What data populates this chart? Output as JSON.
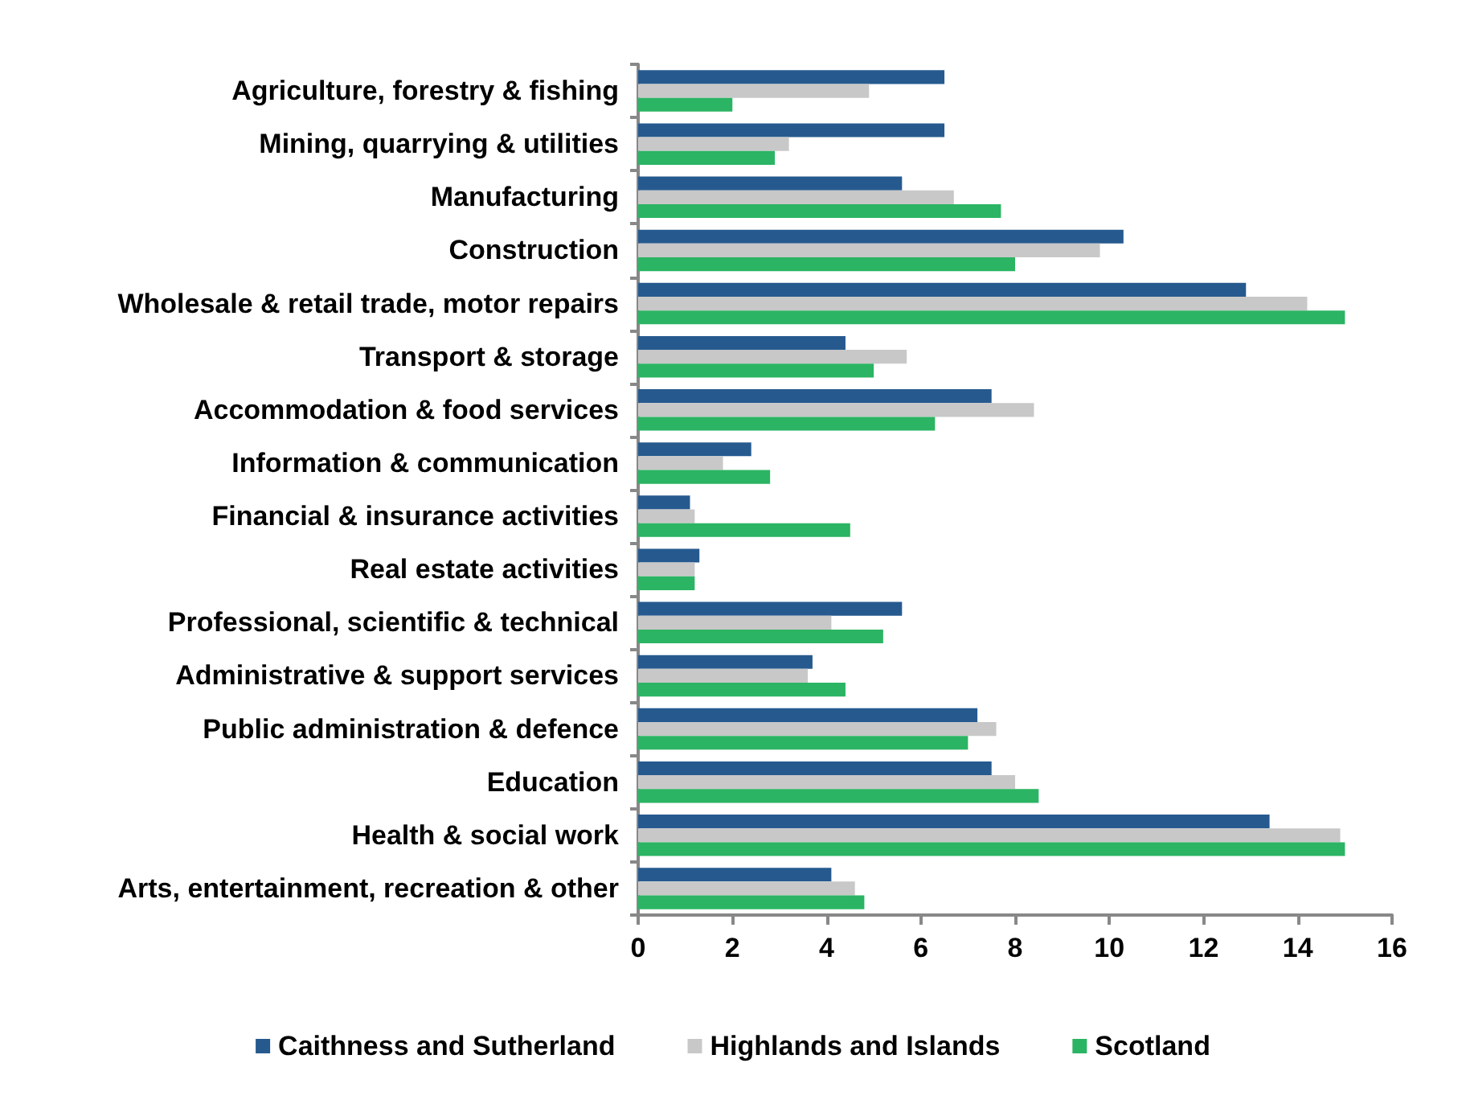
{
  "chart_data": {
    "type": "bar",
    "orientation": "horizontal",
    "categories": [
      "Agriculture, forestry & fishing",
      "Mining, quarrying & utilities",
      "Manufacturing",
      "Construction",
      "Wholesale & retail trade, motor repairs",
      "Transport & storage",
      "Accommodation & food services",
      "Information & communication",
      "Financial & insurance activities",
      "Real estate activities",
      "Professional, scientific & technical",
      "Administrative & support services",
      "Public administration & defence",
      "Education",
      "Health & social work",
      "Arts, entertainment, recreation & other"
    ],
    "series": [
      {
        "name": "Caithness and Sutherland",
        "color": "#265a8f",
        "values": [
          6.5,
          6.5,
          5.6,
          10.3,
          12.9,
          4.4,
          7.5,
          2.4,
          1.1,
          1.3,
          5.6,
          3.7,
          7.2,
          7.5,
          13.4,
          4.1
        ]
      },
      {
        "name": "Highlands and Islands",
        "color": "#c8c8c8",
        "values": [
          4.9,
          3.2,
          6.7,
          9.8,
          14.2,
          5.7,
          8.4,
          1.8,
          1.2,
          1.2,
          4.1,
          3.6,
          7.6,
          8.0,
          14.9,
          4.6
        ]
      },
      {
        "name": "Scotland",
        "color": "#2bb463",
        "values": [
          2.0,
          2.9,
          7.7,
          8.0,
          15.0,
          5.0,
          6.3,
          2.8,
          4.5,
          1.2,
          5.2,
          4.4,
          7.0,
          8.5,
          15.0,
          4.8
        ]
      }
    ],
    "xlim": [
      0,
      16
    ],
    "xticks": [
      0,
      2,
      4,
      6,
      8,
      10,
      12,
      14,
      16
    ],
    "grid": false,
    "legend": "bottom"
  }
}
